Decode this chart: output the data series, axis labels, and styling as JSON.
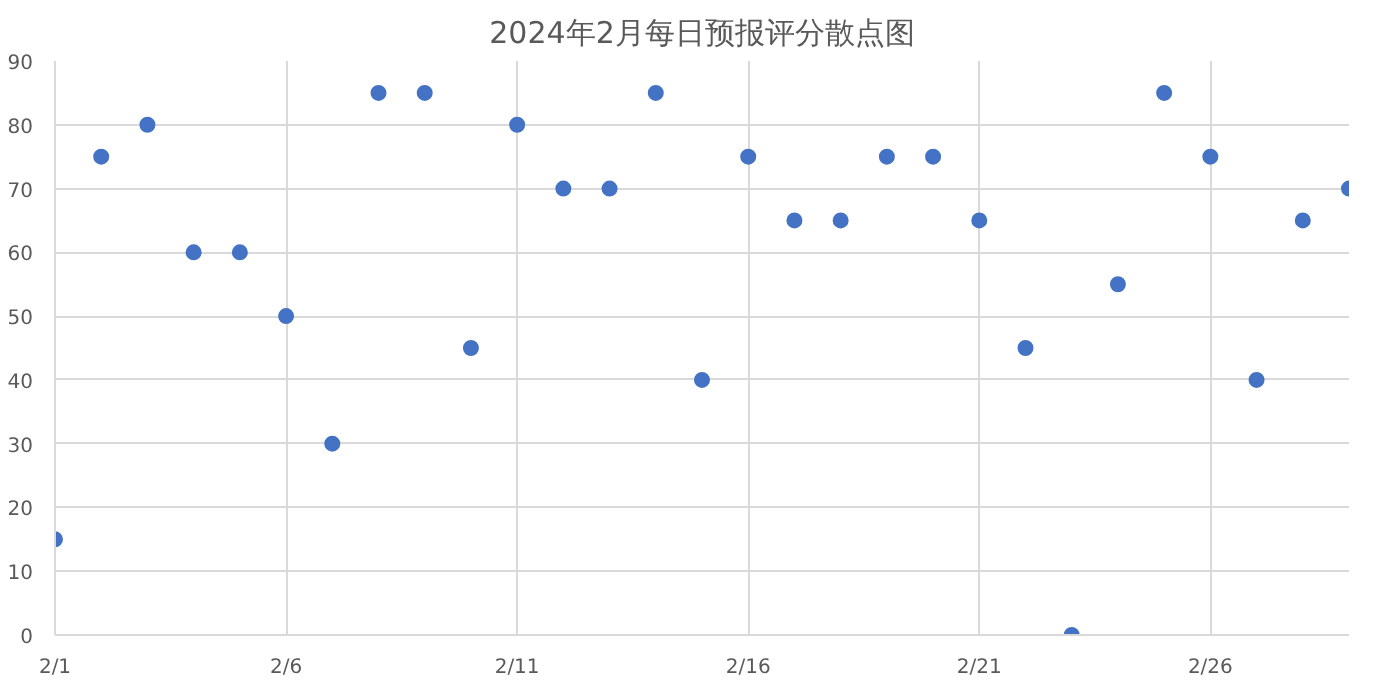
{
  "chart_data": {
    "type": "scatter",
    "title": "2024年2月每日预报评分散点图",
    "x": [
      "2024-02-01",
      "2024-02-02",
      "2024-02-03",
      "2024-02-04",
      "2024-02-05",
      "2024-02-06",
      "2024-02-07",
      "2024-02-08",
      "2024-02-09",
      "2024-02-10",
      "2024-02-11",
      "2024-02-12",
      "2024-02-13",
      "2024-02-14",
      "2024-02-15",
      "2024-02-16",
      "2024-02-17",
      "2024-02-18",
      "2024-02-19",
      "2024-02-20",
      "2024-02-21",
      "2024-02-22",
      "2024-02-23",
      "2024-02-24",
      "2024-02-25",
      "2024-02-26",
      "2024-02-27",
      "2024-02-28",
      "2024-02-29"
    ],
    "series": [
      {
        "color": "#4472c4",
        "values": [
          15,
          75,
          80,
          60,
          60,
          50,
          30,
          85,
          85,
          45,
          80,
          70,
          70,
          85,
          40,
          75,
          65,
          65,
          75,
          75,
          65,
          45,
          0,
          55,
          85,
          75,
          40,
          65,
          70
        ]
      }
    ],
    "xlim": [
      "2024-02-01",
      "2024-02-29"
    ],
    "xticks": [
      {
        "value": "2024-02-01",
        "label": "2/1"
      },
      {
        "value": "2024-02-06",
        "label": "2/6"
      },
      {
        "value": "2024-02-11",
        "label": "2/11"
      },
      {
        "value": "2024-02-16",
        "label": "2/16"
      },
      {
        "value": "2024-02-21",
        "label": "2/21"
      },
      {
        "value": "2024-02-26",
        "label": "2/26"
      }
    ],
    "ylim": [
      0,
      90
    ],
    "yticks": [
      0,
      10,
      20,
      30,
      40,
      50,
      60,
      70,
      80,
      90
    ],
    "grid": true,
    "marker": "circle"
  }
}
